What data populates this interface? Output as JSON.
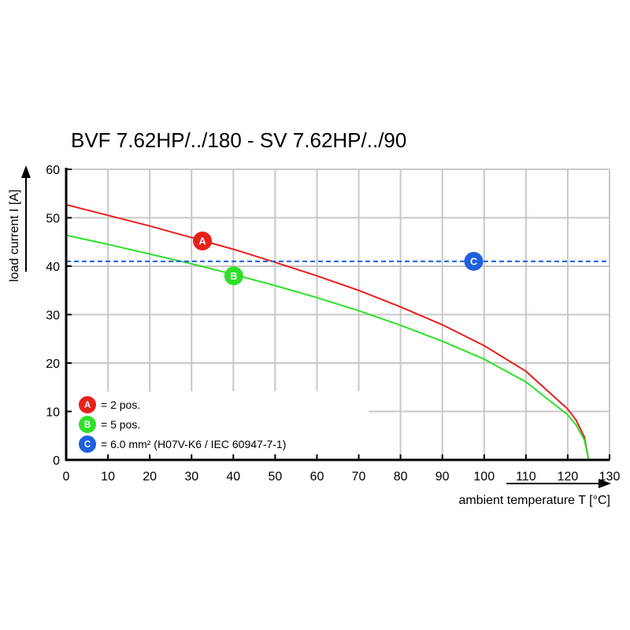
{
  "chart_data": {
    "type": "line",
    "title": "BVF 7.62HP/../180 - SV 7.62HP/../90",
    "xlabel": "ambient temperature T [°C]",
    "ylabel": "load current I [A]",
    "xlim": [
      0,
      130
    ],
    "ylim": [
      0,
      60
    ],
    "xticks": [
      0,
      10,
      20,
      30,
      40,
      50,
      60,
      70,
      80,
      90,
      100,
      110,
      120,
      130
    ],
    "yticks": [
      0,
      10,
      20,
      30,
      40,
      50,
      60
    ],
    "grid": true,
    "legend_position": "bottom-left",
    "x": [
      0,
      10,
      20,
      30,
      40,
      50,
      60,
      70,
      80,
      90,
      100,
      110,
      120,
      122,
      124,
      125
    ],
    "series": [
      {
        "marker": "A",
        "color": "#e8201c",
        "values": [
          52.7,
          50.5,
          48.3,
          45.9,
          43.5,
          40.8,
          38.0,
          35.0,
          31.6,
          27.9,
          23.6,
          18.3,
          10.5,
          8.2,
          4.7,
          0
        ]
      },
      {
        "marker": "B",
        "color": "#2fe02a",
        "values": [
          46.4,
          44.5,
          42.5,
          40.5,
          38.3,
          36.0,
          33.5,
          30.8,
          27.8,
          24.5,
          20.8,
          16.1,
          9.3,
          7.2,
          4.1,
          0
        ]
      },
      {
        "marker": "C",
        "color": "#1f5fe0",
        "style": "dashed",
        "constant": 41
      }
    ],
    "markers": [
      {
        "label": "A",
        "color": "#e8201c",
        "x": 32.6,
        "y": 45.2
      },
      {
        "label": "B",
        "color": "#2fe02a",
        "x": 40.1,
        "y": 38.0
      },
      {
        "label": "C",
        "color": "#1f5fe0",
        "x": 97.5,
        "y": 41
      }
    ],
    "legend": [
      {
        "label": "A",
        "color": "#e8201c",
        "text": "= 2 pos."
      },
      {
        "label": "B",
        "color": "#2fe02a",
        "text": "= 5 pos."
      },
      {
        "label": "C",
        "color": "#1f5fe0",
        "text": "= 6.0 mm² (H07V-K6 / IEC 60947-7-1)"
      }
    ]
  }
}
